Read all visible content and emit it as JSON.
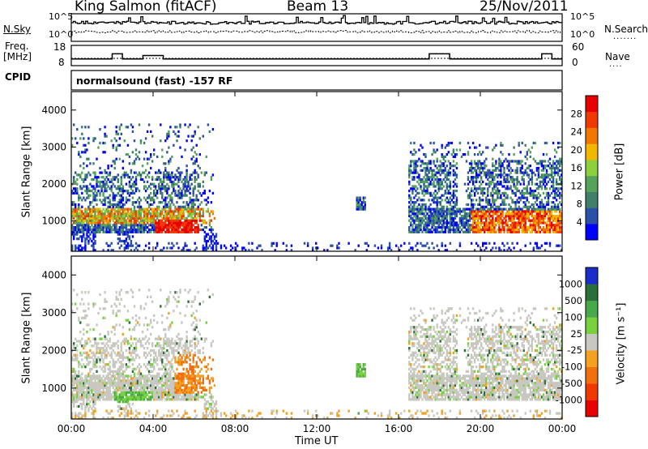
{
  "header": {
    "station": "King Salmon (fitACF)",
    "beam": "Beam 13",
    "date": "25/Nov/2011"
  },
  "ancillary": {
    "nsky_label": "N.Sky",
    "nsearch_label": "N.Search",
    "noise_ticks": [
      "10^5",
      "10^0"
    ],
    "freq_label_1": "Freq.",
    "freq_label_2": "[MHz]",
    "freq_ticks": [
      "18",
      "8"
    ],
    "nave_label": "Nave",
    "nave_ticks": [
      "60",
      "0"
    ],
    "cpid_label": "CPID",
    "cpid_text": "normalsound (fast) -157 RF"
  },
  "colors": {
    "power_scale": [
      "#0000ff",
      "#2b50a8",
      "#3f7f6a",
      "#55a35b",
      "#8ccf3f",
      "#f2b800",
      "#f07800",
      "#ee3a00",
      "#e60000"
    ],
    "velocity_scale": [
      "#1c2ec9",
      "#2a6e3a",
      "#47a94a",
      "#78d23e",
      "#c8c8c0",
      "#f4a020",
      "#f07010",
      "#ee3a00",
      "#e60000"
    ]
  },
  "chart_data": [
    {
      "type": "heatmap",
      "title": "Power",
      "ylabel": "Slant Range [km]",
      "xlabel": "",
      "ylim": [
        180,
        4500
      ],
      "yticks": [
        "1000",
        "2000",
        "3000",
        "4000"
      ],
      "colorbar_label": "Power [dB]",
      "colorbar_ticks": [
        "4",
        "8",
        "12",
        "16",
        "20",
        "24",
        "28"
      ],
      "colorbar_range": [
        0,
        32
      ],
      "hours": [
        0,
        0.5,
        1,
        1.5,
        2,
        2.5,
        3,
        3.5,
        4,
        4.5,
        5,
        5.5,
        6,
        6.5,
        7,
        7.5,
        8,
        8.5,
        9,
        9.5,
        10,
        10.5,
        11,
        11.5,
        12,
        12.5,
        13,
        13.5,
        14,
        14.5,
        15,
        15.5,
        16,
        16.5,
        17,
        17.5,
        18,
        18.5,
        19,
        19.5,
        20,
        20.5,
        21,
        21.5,
        22,
        22.5,
        23,
        23.5
      ],
      "scatter_echo_summary": [
        {
          "t_range": [
            0,
            7.0
          ],
          "range_km": [
            600,
            3600
          ],
          "power_db": [
            4,
            30
          ]
        },
        {
          "t_range": [
            4.2,
            6.2
          ],
          "range_km": [
            600,
            1000
          ],
          "power_db": [
            22,
            30
          ]
        },
        {
          "t_range": [
            14.0,
            14.3
          ],
          "range_km": [
            1300,
            1600
          ],
          "power_db": [
            4,
            10
          ]
        },
        {
          "t_range": [
            16.5,
            24.0
          ],
          "range_km": [
            600,
            3000
          ],
          "power_db": [
            4,
            30
          ]
        }
      ]
    },
    {
      "type": "heatmap",
      "title": "Velocity",
      "ylabel": "Slant Range [km]",
      "xlabel": "Time UT",
      "ylim": [
        180,
        4500
      ],
      "yticks": [
        "1000",
        "2000",
        "3000",
        "4000"
      ],
      "xticks": [
        "00:00",
        "04:00",
        "08:00",
        "12:00",
        "16:00",
        "20:00",
        "00:00"
      ],
      "colorbar_label": "Velocity [m s⁻¹]",
      "colorbar_ticks": [
        "1000",
        "500",
        "100",
        "25",
        "-25",
        "-100",
        "-500",
        "-1000"
      ],
      "scatter_echo_summary": [
        {
          "t_range": [
            0,
            6.0
          ],
          "range_km": [
            800,
            2200
          ],
          "velocity_ms": [
            -25,
            25
          ]
        },
        {
          "t_range": [
            5.0,
            7.0
          ],
          "range_km": [
            800,
            1900
          ],
          "velocity_ms": [
            -500,
            -100
          ]
        },
        {
          "t_range": [
            2.0,
            4.0
          ],
          "range_km": [
            600,
            900
          ],
          "velocity_ms": [
            100,
            500
          ]
        },
        {
          "t_range": [
            16.5,
            24.0
          ],
          "range_km": [
            600,
            2600
          ],
          "velocity_ms": [
            -25,
            25
          ]
        }
      ]
    }
  ]
}
